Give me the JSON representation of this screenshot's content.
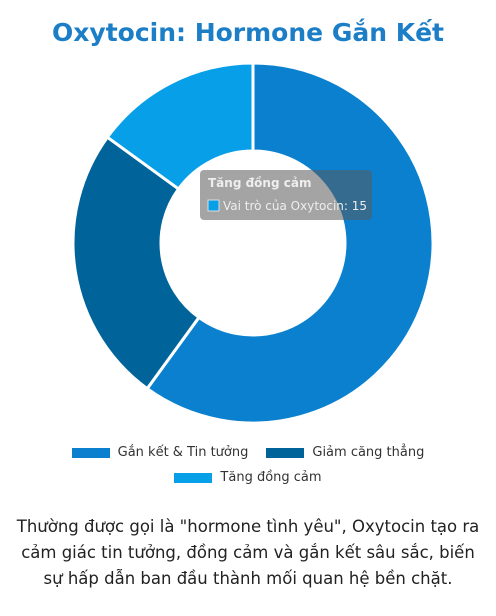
{
  "chart_data": {
    "type": "doughnut",
    "title": "Oxytocin: Hormone Gắn Kết",
    "categories": [
      "Gắn kết & Tin tưởng",
      "Giảm căng thẳng",
      "Tăng đồng cảm"
    ],
    "series": [
      {
        "name": "Vai trò của Oxytocin",
        "values": [
          60,
          25,
          15
        ],
        "colors": [
          "#0a80cf",
          "#00649a",
          "#069fe8"
        ]
      }
    ],
    "tooltip": {
      "title": "Tăng đồng cảm",
      "text": "Vai trò của Oxytocin: 15"
    }
  },
  "description": "Thường được gọi là \"hormone tình yêu\", Oxytocin tạo ra cảm giác tin tưởng, đồng cảm và gắn kết sâu sắc, biến sự hấp dẫn ban đầu thành mối quan hệ bền chặt."
}
